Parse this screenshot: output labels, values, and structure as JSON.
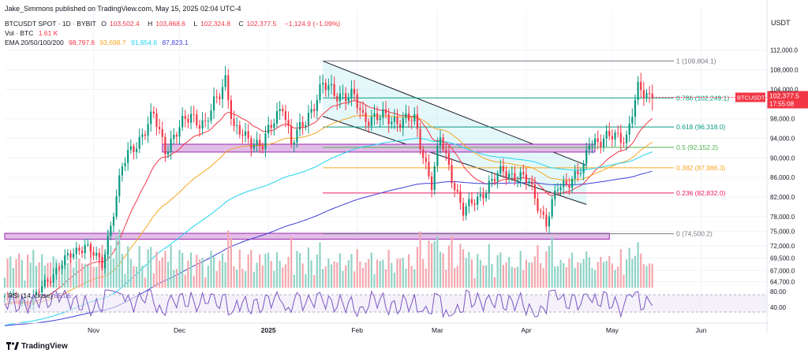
{
  "header": {
    "published": "Jake_Simmons published on TradingView.com, May 15, 2025 02:04 UTC-4",
    "symbol": "BTCUSDT SPOT · 1D · BYBIT",
    "open_label": "O",
    "open": "103,502.4",
    "high_label": "H",
    "high": "103,868.6",
    "low_label": "L",
    "low": "102,324.8",
    "close_label": "C",
    "close": "102,377.5",
    "change": "−1,124.9 (−1.09%)",
    "vol_label": "Vol · BTC",
    "vol": "1.61 K",
    "ema_label": "EMA 20/50/100/200",
    "ema_values": [
      "98,797.6",
      "93,698.7",
      "91,954.6",
      "87,823.1"
    ]
  },
  "footer": {
    "brand": "TradingView"
  },
  "chart_data": {
    "type": "candlestick",
    "symbol": "BTCUSDT",
    "currency": "USDT",
    "timeframe": "1D",
    "last_price": "102,377.5",
    "countdown": "17:55:08",
    "ylim": [
      63500,
      115500
    ],
    "y_ticks": [
      {
        "v": 112000,
        "l": "112,000.0"
      },
      {
        "v": 108000,
        "l": "108,000.0"
      },
      {
        "v": 104000,
        "l": "104,000.0"
      },
      {
        "v": 98000,
        "l": "98,000.0"
      },
      {
        "v": 94000,
        "l": "94,000.0"
      },
      {
        "v": 90000,
        "l": "90,000.0"
      },
      {
        "v": 86000,
        "l": "86,000.0"
      },
      {
        "v": 82000,
        "l": "82,000.0"
      },
      {
        "v": 78000,
        "l": "78,000.0"
      },
      {
        "v": 75000,
        "l": "75,000.0"
      },
      {
        "v": 72000,
        "l": "72,000.0"
      },
      {
        "v": 69500,
        "l": "69,500.0"
      },
      {
        "v": 67000,
        "l": "67,000.0"
      },
      {
        "v": 64700,
        "l": "64,700.0"
      }
    ],
    "x_ticks": [
      {
        "d": "2024-11-01",
        "l": "Nov"
      },
      {
        "d": "2024-12-01",
        "l": "Dec"
      },
      {
        "d": "2025-01-01",
        "l": "2025"
      },
      {
        "d": "2025-02-01",
        "l": "Feb"
      },
      {
        "d": "2025-03-01",
        "l": "Mar"
      },
      {
        "d": "2025-04-01",
        "l": "Apr"
      },
      {
        "d": "2025-05-01",
        "l": "May"
      },
      {
        "d": "2025-06-01",
        "l": "Jun"
      }
    ],
    "x_start": "2024-10-01",
    "x_end": "2025-06-24",
    "fib_levels": [
      {
        "ratio": "1",
        "price": 109804.1,
        "label": "1 (109,804.1)",
        "color": "#787b86"
      },
      {
        "ratio": "0.786",
        "price": 102249.1,
        "label": "0.786 (102,249.1)",
        "color": "#089981"
      },
      {
        "ratio": "0.618",
        "price": 96318.0,
        "label": "0.618 (96,318.0)",
        "color": "#089981"
      },
      {
        "ratio": "0.5",
        "price": 92152.2,
        "label": "0.5 (92,152.2)",
        "color": "#4caf50"
      },
      {
        "ratio": "0.382",
        "price": 87986.3,
        "label": "0.382 (87,986.3)",
        "color": "#f5a623"
      },
      {
        "ratio": "0.236",
        "price": 82832.0,
        "label": "0.236 (82,832.0)",
        "color": "#e91e63"
      },
      {
        "ratio": "0",
        "price": 74500.2,
        "label": "0 (74,500.2)",
        "color": "#787b86"
      }
    ],
    "fib_start": "2025-01-20",
    "fib_end": "2025-06-24",
    "channel": {
      "upper": [
        {
          "d": "2025-01-20",
          "p": 109800
        },
        {
          "d": "2025-04-22",
          "p": 88500
        }
      ],
      "lower": [
        {
          "d": "2025-01-20",
          "p": 98500
        },
        {
          "d": "2025-04-22",
          "p": 80500
        }
      ]
    },
    "zones": [
      {
        "start": "2024-11-25",
        "end": "2025-04-25",
        "low": 91200,
        "high": 92800,
        "color": "#9c27b0"
      },
      {
        "start": "2024-10-01",
        "end": "2025-04-30",
        "low": 73400,
        "high": 74600,
        "color": "#9c27b0"
      }
    ],
    "ohlc_anchors": [
      [
        "2024-10-01",
        61500
      ],
      [
        "2024-10-10",
        60500
      ],
      [
        "2024-10-20",
        68000
      ],
      [
        "2024-10-29",
        72500
      ],
      [
        "2024-11-04",
        68000
      ],
      [
        "2024-11-11",
        88000
      ],
      [
        "2024-11-13",
        90500
      ],
      [
        "2024-11-22",
        98500
      ],
      [
        "2024-11-26",
        92000
      ],
      [
        "2024-12-05",
        99000
      ],
      [
        "2024-12-10",
        96500
      ],
      [
        "2024-12-17",
        106500
      ],
      [
        "2024-12-20",
        95500
      ],
      [
        "2024-12-30",
        92500
      ],
      [
        "2025-01-06",
        101500
      ],
      [
        "2025-01-09",
        92500
      ],
      [
        "2025-01-20",
        104500
      ],
      [
        "2025-01-31",
        102000
      ],
      [
        "2025-02-03",
        98500
      ],
      [
        "2025-02-21",
        97500
      ],
      [
        "2025-02-27",
        84500
      ],
      [
        "2025-03-02",
        94000
      ],
      [
        "2025-03-10",
        78800
      ],
      [
        "2025-03-24",
        87500
      ],
      [
        "2025-04-02",
        85000
      ],
      [
        "2025-04-08",
        76500
      ],
      [
        "2025-04-12",
        84000
      ],
      [
        "2025-04-21",
        87500
      ],
      [
        "2025-04-23",
        93500
      ],
      [
        "2025-05-06",
        94500
      ],
      [
        "2025-05-08",
        99500
      ],
      [
        "2025-05-10",
        103500
      ],
      [
        "2025-05-15",
        102377.5
      ]
    ],
    "indicators": [
      {
        "name": "EMA 20",
        "color": "#f23645",
        "last": 98797.6
      },
      {
        "name": "EMA 50",
        "color": "#f5a623",
        "last": 93698.7
      },
      {
        "name": "EMA 100",
        "color": "#22d3ee",
        "last": 91954.6
      },
      {
        "name": "EMA 200",
        "color": "#3f3fd6",
        "last": 87823.1
      }
    ],
    "rsi": {
      "label": "RSI (14, close)",
      "value": "65.06",
      "ticks": [
        {
          "v": 80,
          "l": "80.00"
        },
        {
          "v": 40,
          "l": "40.00"
        }
      ],
      "bands": [
        70,
        30
      ]
    },
    "colors": {
      "up": "#089981",
      "down": "#f23645",
      "up_vol": "#8fd3c5",
      "down_vol": "#f4a7ad",
      "price_tag": "#f23645"
    }
  }
}
